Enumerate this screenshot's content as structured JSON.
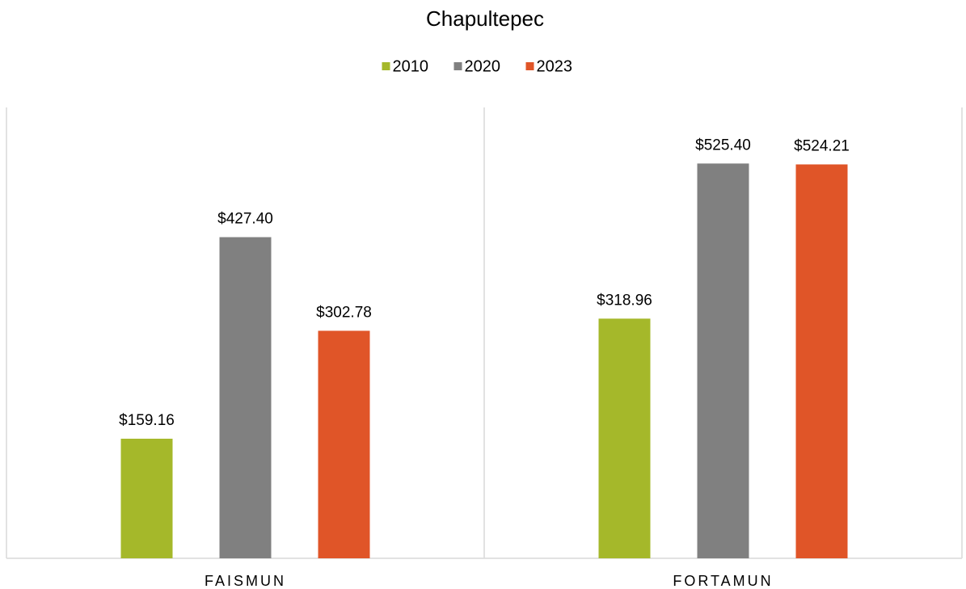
{
  "chart_data": {
    "type": "bar",
    "title": "Chapultepec",
    "categories": [
      "FAISMUN",
      "FORTAMUN"
    ],
    "series": [
      {
        "name": "2010",
        "color": "#a5b82a",
        "values": [
          159.16,
          318.96
        ],
        "value_labels": [
          "$159.16",
          "$318.96"
        ]
      },
      {
        "name": "2020",
        "color": "#808080",
        "values": [
          427.4,
          525.4
        ],
        "value_labels": [
          "$427.40",
          "$525.40"
        ]
      },
      {
        "name": "2023",
        "color": "#e05528",
        "values": [
          302.78,
          524.21
        ],
        "value_labels": [
          "$302.78",
          "$524.21"
        ]
      }
    ],
    "ylim": [
      0,
      600
    ],
    "legend": "top"
  }
}
